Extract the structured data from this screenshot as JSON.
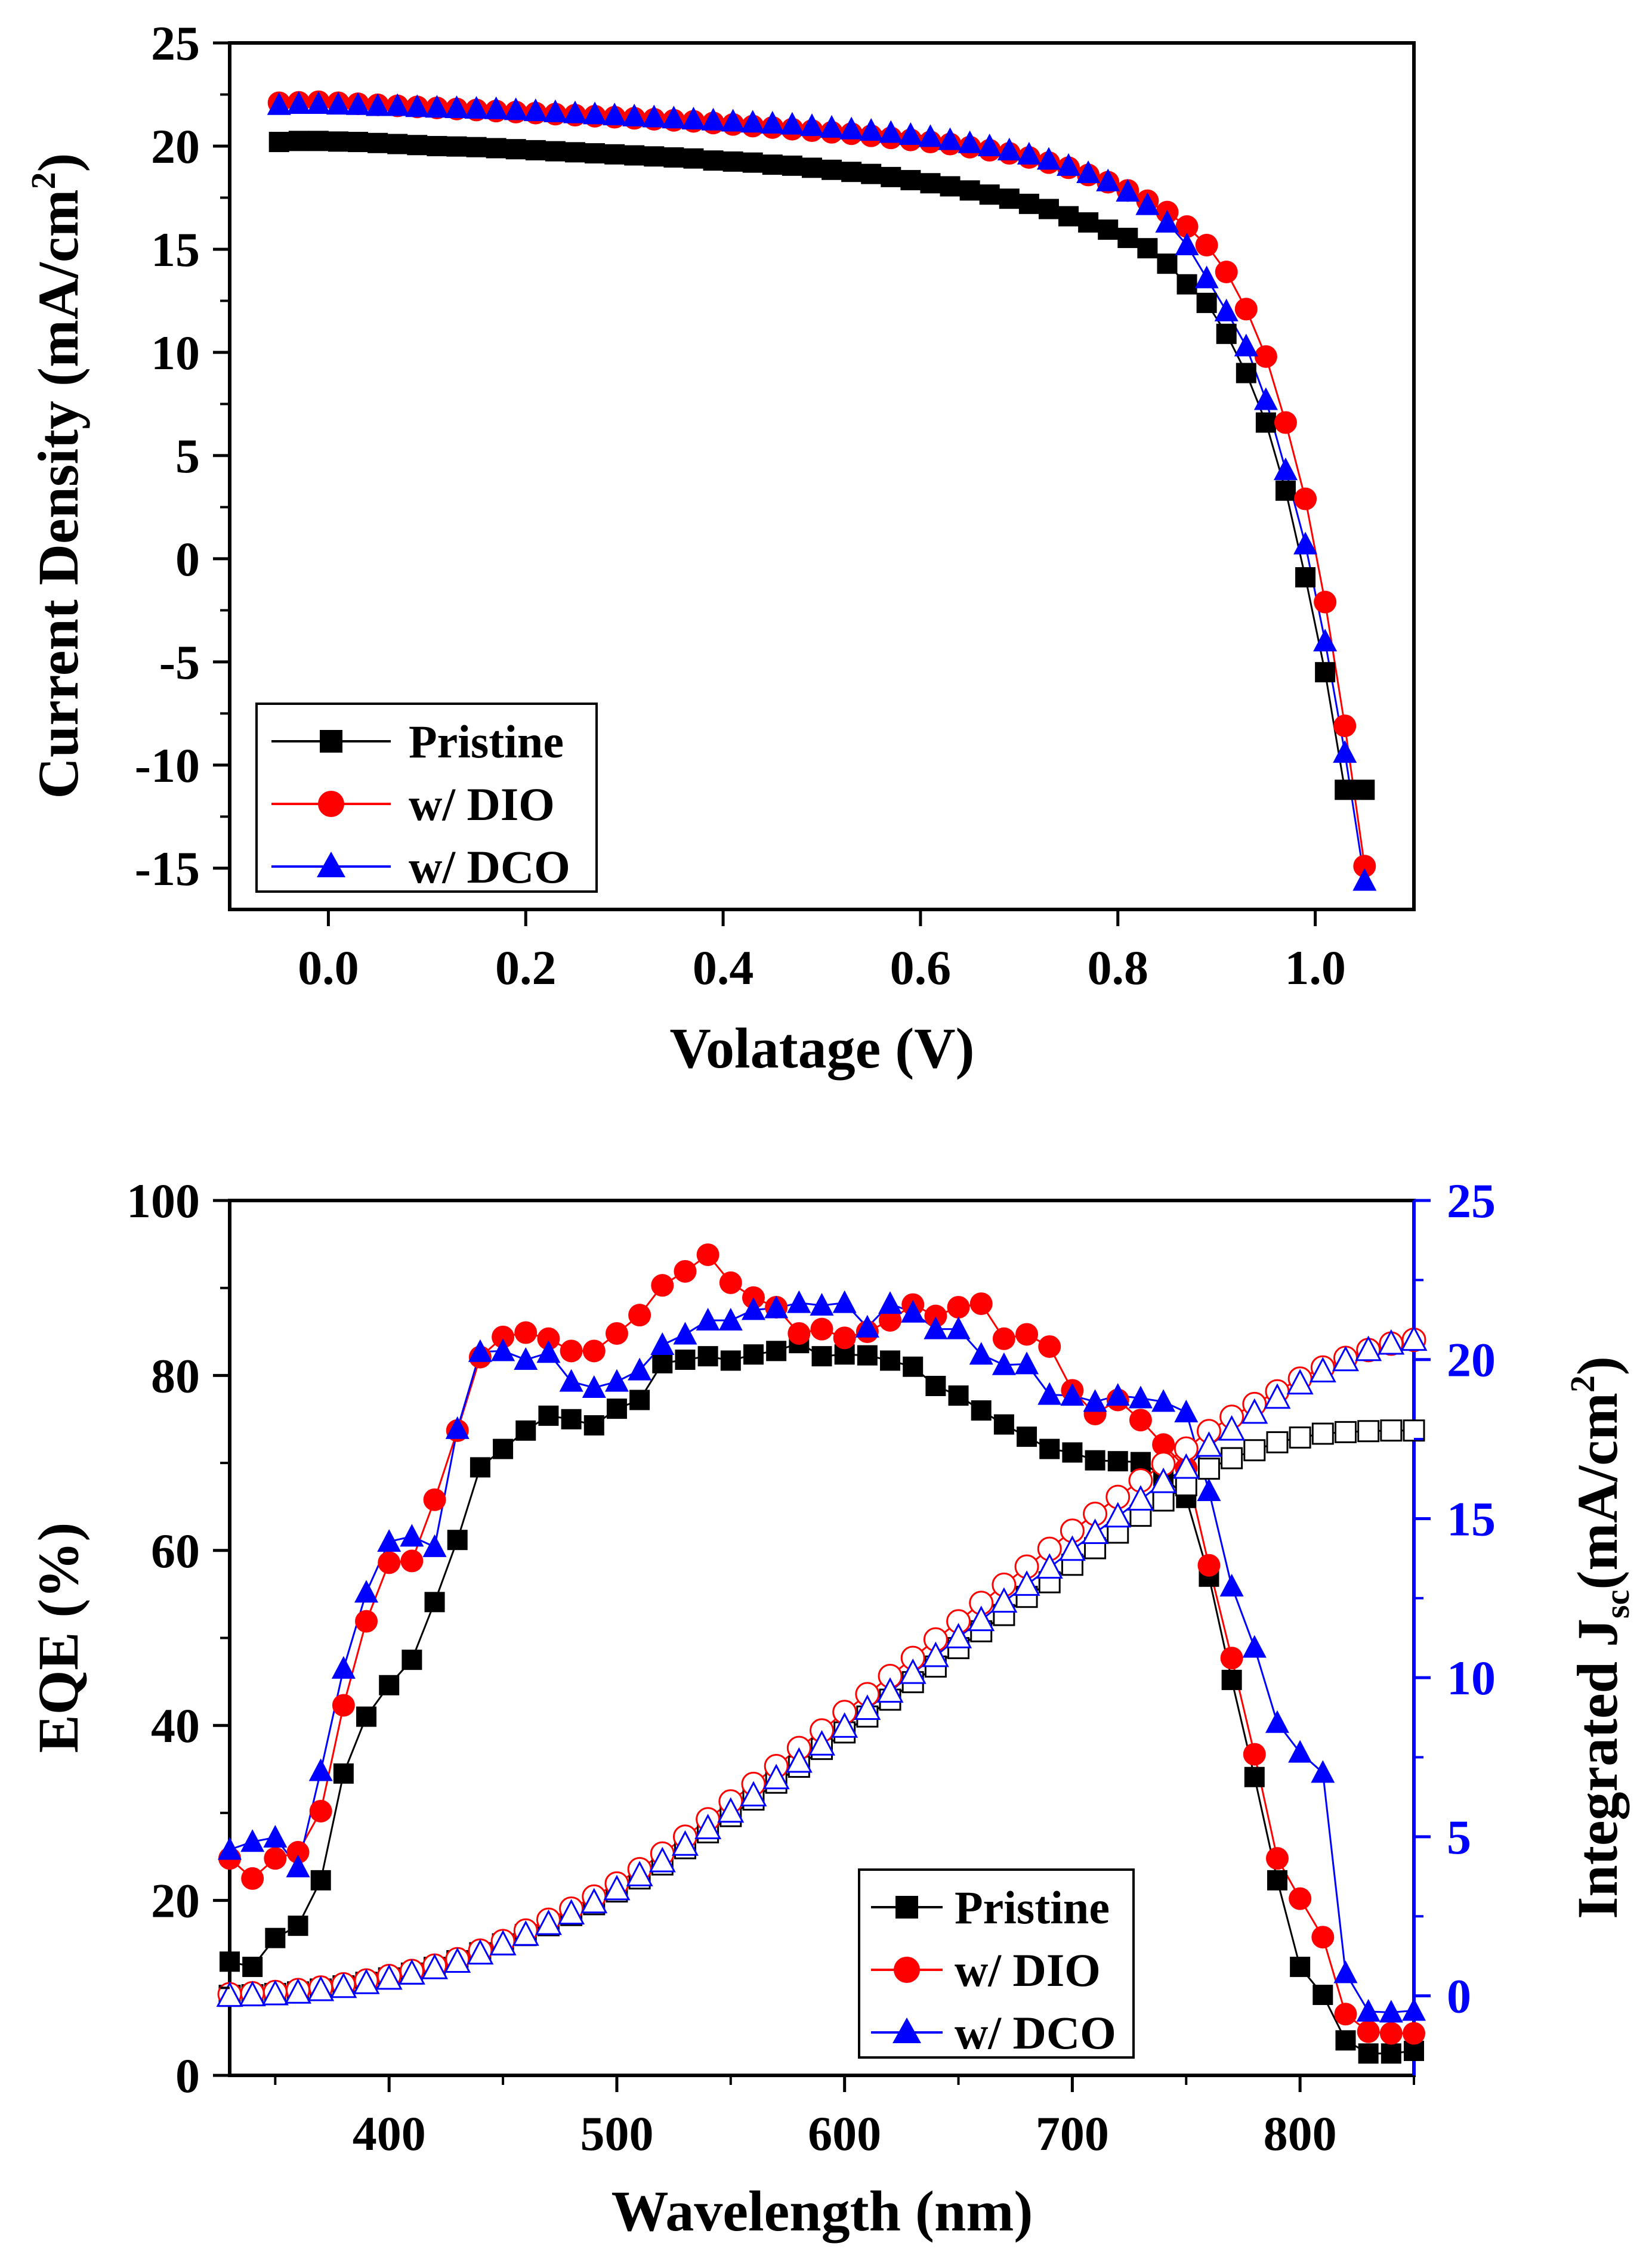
{
  "chart_data": [
    {
      "type": "line",
      "xlabel": "Volatage (V)",
      "ylabel": "Current Density (mA/cm",
      "ylabel_sup": "2",
      "ylabel_close": ")",
      "xlim": [
        -0.1,
        1.1
      ],
      "ylim": [
        -17,
        25
      ],
      "xticks": [
        0.0,
        0.2,
        0.4,
        0.6,
        0.8,
        1.0
      ],
      "xtick_labels": [
        "0.0",
        "0.2",
        "0.4",
        "0.6",
        "0.8",
        "1.0"
      ],
      "yticks": [
        -15,
        -10,
        -5,
        0,
        5,
        10,
        15,
        20,
        25
      ],
      "ytick_labels": [
        "-15",
        "-10",
        "-5",
        "0",
        "5",
        "10",
        "15",
        "20",
        "25"
      ],
      "grid": false,
      "legend_position": "bottom-left",
      "series": [
        {
          "name": "Pristine",
          "color": "#000000",
          "marker": "square",
          "x": [
            -0.05,
            -0.03,
            -0.01,
            0.01,
            0.03,
            0.05,
            0.07,
            0.09,
            0.11,
            0.13,
            0.15,
            0.17,
            0.19,
            0.21,
            0.23,
            0.25,
            0.27,
            0.29,
            0.31,
            0.33,
            0.35,
            0.37,
            0.39,
            0.41,
            0.43,
            0.45,
            0.47,
            0.49,
            0.51,
            0.53,
            0.55,
            0.57,
            0.59,
            0.61,
            0.63,
            0.65,
            0.67,
            0.69,
            0.71,
            0.73,
            0.75,
            0.77,
            0.79,
            0.81,
            0.83,
            0.85,
            0.87,
            0.89,
            0.91,
            0.93,
            0.95,
            0.97,
            0.99,
            1.01,
            1.03,
            1.05
          ],
          "y": [
            20.2,
            20.25,
            20.25,
            20.22,
            20.2,
            20.15,
            20.1,
            20.05,
            20.0,
            19.98,
            19.95,
            19.9,
            19.85,
            19.8,
            19.75,
            19.7,
            19.65,
            19.6,
            19.55,
            19.5,
            19.45,
            19.4,
            19.3,
            19.25,
            19.2,
            19.1,
            19.05,
            18.95,
            18.85,
            18.75,
            18.65,
            18.5,
            18.35,
            18.2,
            18.05,
            17.85,
            17.65,
            17.45,
            17.2,
            16.95,
            16.6,
            16.3,
            15.95,
            15.55,
            15.05,
            14.3,
            13.3,
            12.4,
            10.9,
            9.0,
            6.6,
            3.3,
            -0.9,
            -5.5,
            -11.2,
            -11.2
          ]
        },
        {
          "name": "w/ DIO",
          "color": "#ff0000",
          "marker": "circle",
          "x": [
            -0.05,
            -0.03,
            -0.01,
            0.01,
            0.03,
            0.05,
            0.07,
            0.09,
            0.11,
            0.13,
            0.15,
            0.17,
            0.19,
            0.21,
            0.23,
            0.25,
            0.27,
            0.29,
            0.31,
            0.33,
            0.35,
            0.37,
            0.39,
            0.41,
            0.43,
            0.45,
            0.47,
            0.49,
            0.51,
            0.53,
            0.55,
            0.57,
            0.59,
            0.61,
            0.63,
            0.65,
            0.67,
            0.69,
            0.71,
            0.73,
            0.75,
            0.77,
            0.79,
            0.81,
            0.83,
            0.85,
            0.87,
            0.89,
            0.91,
            0.93,
            0.95,
            0.97,
            0.99,
            1.01,
            1.03,
            1.05
          ],
          "y": [
            22.1,
            22.12,
            22.15,
            22.1,
            22.05,
            22.0,
            21.95,
            21.9,
            21.85,
            21.8,
            21.75,
            21.7,
            21.65,
            21.6,
            21.55,
            21.5,
            21.45,
            21.4,
            21.35,
            21.3,
            21.25,
            21.2,
            21.12,
            21.05,
            20.97,
            20.9,
            20.82,
            20.75,
            20.67,
            20.6,
            20.5,
            20.4,
            20.3,
            20.2,
            20.1,
            19.95,
            19.8,
            19.65,
            19.45,
            19.2,
            18.95,
            18.6,
            18.25,
            17.85,
            17.35,
            16.8,
            16.1,
            15.2,
            13.9,
            12.1,
            9.8,
            6.6,
            2.9,
            -2.1,
            -8.1,
            -14.9
          ]
        },
        {
          "name": "w/ DCO",
          "color": "#0000ff",
          "marker": "triangle",
          "x": [
            -0.05,
            -0.03,
            -0.01,
            0.01,
            0.03,
            0.05,
            0.07,
            0.09,
            0.11,
            0.13,
            0.15,
            0.17,
            0.19,
            0.21,
            0.23,
            0.25,
            0.27,
            0.29,
            0.31,
            0.33,
            0.35,
            0.37,
            0.39,
            0.41,
            0.43,
            0.45,
            0.47,
            0.49,
            0.51,
            0.53,
            0.55,
            0.57,
            0.59,
            0.61,
            0.63,
            0.65,
            0.67,
            0.69,
            0.71,
            0.73,
            0.75,
            0.77,
            0.79,
            0.81,
            0.83,
            0.85,
            0.87,
            0.89,
            0.91,
            0.93,
            0.95,
            0.97,
            0.99,
            1.01,
            1.03,
            1.05
          ],
          "y": [
            22.0,
            22.05,
            22.05,
            22.02,
            22.0,
            21.95,
            21.95,
            21.9,
            21.87,
            21.85,
            21.82,
            21.8,
            21.75,
            21.7,
            21.65,
            21.6,
            21.55,
            21.5,
            21.45,
            21.4,
            21.35,
            21.3,
            21.25,
            21.2,
            21.15,
            21.1,
            21.05,
            20.98,
            20.9,
            20.82,
            20.75,
            20.65,
            20.55,
            20.45,
            20.3,
            20.15,
            20.0,
            19.8,
            19.6,
            19.35,
            19.05,
            18.7,
            18.3,
            17.8,
            17.15,
            16.3,
            15.2,
            13.6,
            12.0,
            10.3,
            7.7,
            4.3,
            0.7,
            -4.0,
            -9.4,
            -15.6
          ]
        }
      ],
      "legend": [
        "Pristine",
        "w/ DIO",
        "w/ DCO"
      ]
    },
    {
      "type": "line",
      "xlabel": "Wavelength (nm)",
      "ylabel": "EQE (%)",
      "ylabel_right_main": "Integrated J",
      "ylabel_right_sub": "sc",
      "ylabel_right_unit": "(mA/cm",
      "ylabel_right_sup": "2",
      "ylabel_right_close": ")",
      "xlim": [
        330,
        850
      ],
      "ylim": [
        0,
        100
      ],
      "ylim_right": [
        -2.5,
        25
      ],
      "xticks": [
        400,
        500,
        600,
        700,
        800
      ],
      "xtick_labels": [
        "400",
        "500",
        "600",
        "700",
        "800"
      ],
      "yticks": [
        0,
        20,
        40,
        60,
        80,
        100
      ],
      "ytick_labels": [
        "0",
        "20",
        "40",
        "60",
        "80",
        "100"
      ],
      "yticks_right": [
        0,
        5,
        10,
        15,
        20,
        25
      ],
      "ytick_labels_right": [
        "0",
        "5",
        "10",
        "15",
        "20",
        "25"
      ],
      "right_axis_color": "#0000ff",
      "grid": false,
      "legend_position": "bottom-center",
      "x": [
        330,
        340,
        350,
        360,
        370,
        380,
        390,
        400,
        410,
        420,
        430,
        440,
        450,
        460,
        470,
        480,
        490,
        500,
        510,
        520,
        530,
        540,
        550,
        560,
        570,
        580,
        590,
        600,
        610,
        620,
        630,
        640,
        650,
        660,
        670,
        680,
        690,
        700,
        710,
        720,
        730,
        740,
        750,
        760,
        770,
        780,
        790,
        800,
        810,
        820,
        830,
        840,
        850
      ],
      "series": [
        {
          "name": "Pristine",
          "color": "#000000",
          "marker": "square",
          "axis": "left",
          "values": [
            13.0,
            12.4,
            15.7,
            17.1,
            22.3,
            34.5,
            41.0,
            44.6,
            47.5,
            54.1,
            61.2,
            69.5,
            71.6,
            73.7,
            75.4,
            75.0,
            74.3,
            76.2,
            77.2,
            81.4,
            81.8,
            82.2,
            81.7,
            82.4,
            82.8,
            83.7,
            82.2,
            82.4,
            82.3,
            81.7,
            81.0,
            78.8,
            77.7,
            76.0,
            74.4,
            73.0,
            71.6,
            71.2,
            70.3,
            70.2,
            70.1,
            68.5,
            66.0,
            57.0,
            45.2,
            34.1,
            22.3,
            12.4,
            9.2,
            4.0,
            2.5,
            2.5,
            2.8
          ]
        },
        {
          "name": "w/ DIO",
          "color": "#ff0000",
          "marker": "circle",
          "axis": "left",
          "values": [
            24.8,
            22.5,
            24.8,
            25.5,
            30.2,
            42.3,
            51.9,
            58.6,
            58.8,
            65.8,
            73.7,
            82.1,
            84.4,
            84.9,
            84.2,
            82.8,
            82.8,
            84.8,
            86.9,
            90.3,
            91.9,
            93.8,
            90.6,
            88.9,
            87.8,
            84.8,
            85.3,
            84.3,
            85.0,
            86.3,
            88.1,
            86.8,
            87.8,
            88.2,
            84.2,
            84.7,
            83.3,
            78.3,
            75.6,
            77.2,
            74.9,
            72.1,
            69.4,
            58.3,
            47.7,
            36.7,
            24.8,
            20.2,
            15.8,
            7.0,
            5.0,
            4.8,
            4.8
          ]
        },
        {
          "name": "w/ DCO",
          "color": "#0000ff",
          "marker": "triangle",
          "axis": "left",
          "values": [
            25.8,
            26.7,
            27.2,
            23.8,
            34.8,
            46.5,
            55.2,
            61.0,
            61.6,
            60.4,
            73.9,
            82.7,
            82.8,
            81.8,
            82.6,
            79.3,
            78.6,
            79.3,
            80.6,
            83.5,
            84.7,
            86.3,
            86.3,
            87.5,
            87.7,
            88.3,
            88.0,
            88.3,
            85.5,
            88.2,
            87.2,
            85.3,
            85.3,
            82.4,
            81.2,
            81.3,
            77.8,
            77.7,
            77.0,
            77.7,
            77.4,
            77.0,
            75.8,
            66.8,
            55.9,
            48.9,
            40.3,
            36.9,
            34.6,
            11.7,
            7.3,
            7.2,
            7.4
          ]
        },
        {
          "name": "Pristine",
          "color": "#000000",
          "marker": "square-open",
          "axis": "right",
          "values": [
            0.0,
            0.02,
            0.06,
            0.11,
            0.2,
            0.3,
            0.41,
            0.55,
            0.7,
            0.88,
            1.09,
            1.34,
            1.62,
            1.91,
            2.22,
            2.54,
            2.88,
            3.28,
            3.69,
            4.13,
            4.64,
            5.14,
            5.65,
            6.17,
            6.7,
            7.2,
            7.76,
            8.28,
            8.78,
            9.31,
            9.86,
            10.35,
            10.93,
            11.46,
            11.97,
            12.54,
            13.0,
            13.55,
            14.07,
            14.56,
            15.09,
            15.57,
            16.05,
            16.57,
            16.9,
            17.15,
            17.4,
            17.55,
            17.67,
            17.72,
            17.75,
            17.77,
            17.77
          ]
        },
        {
          "name": "w/ DIO",
          "color": "#ff0000",
          "marker": "circle-open",
          "axis": "right",
          "values": [
            0.05,
            0.08,
            0.12,
            0.18,
            0.26,
            0.36,
            0.48,
            0.62,
            0.78,
            0.95,
            1.15,
            1.42,
            1.72,
            2.05,
            2.39,
            2.74,
            3.12,
            3.53,
            3.98,
            4.47,
            5.0,
            5.55,
            6.11,
            6.66,
            7.22,
            7.79,
            8.34,
            8.92,
            9.48,
            10.05,
            10.62,
            11.2,
            11.77,
            12.35,
            12.92,
            13.49,
            14.05,
            14.62,
            15.15,
            15.68,
            16.2,
            16.72,
            17.2,
            17.75,
            18.2,
            18.6,
            19.0,
            19.4,
            19.75,
            20.05,
            20.3,
            20.5,
            20.62
          ]
        },
        {
          "name": "w/ DCO",
          "color": "#0000ff",
          "marker": "triangle-open",
          "axis": "right",
          "values": [
            0.0,
            0.02,
            0.05,
            0.1,
            0.18,
            0.28,
            0.4,
            0.54,
            0.7,
            0.87,
            1.07,
            1.33,
            1.62,
            1.92,
            2.26,
            2.59,
            2.94,
            3.35,
            3.79,
            4.23,
            4.75,
            5.27,
            5.79,
            6.3,
            6.84,
            7.36,
            7.9,
            8.46,
            9.02,
            9.56,
            10.15,
            10.68,
            11.27,
            11.81,
            12.39,
            12.92,
            13.46,
            14.02,
            14.55,
            15.07,
            15.6,
            16.15,
            16.6,
            17.29,
            17.8,
            18.33,
            18.8,
            19.25,
            19.63,
            19.98,
            20.3,
            20.5,
            20.62
          ]
        }
      ],
      "legend": [
        "Pristine",
        "w/ DIO",
        "w/ DCO"
      ]
    }
  ]
}
